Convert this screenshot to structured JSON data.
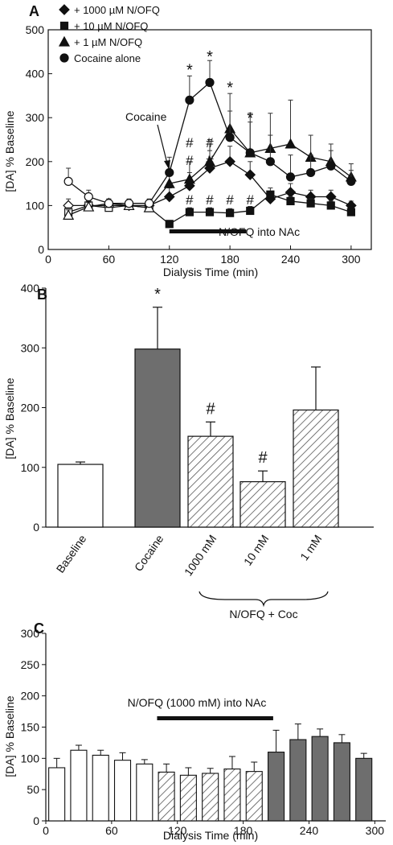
{
  "chart_data": [
    {
      "panel": "A",
      "type": "line",
      "ylabel": "[DA] % Baseline",
      "xlabel": "Dialysis Time (min)",
      "xlim": [
        0,
        320
      ],
      "ylim": [
        0,
        500
      ],
      "xticks": [
        0,
        60,
        120,
        180,
        240,
        300
      ],
      "yticks": [
        0,
        100,
        200,
        300,
        400,
        500
      ],
      "legend_position": "top-left",
      "series": [
        {
          "name": "+ 1000 µM N/OFQ",
          "marker": "diamond",
          "x": [
            20,
            40,
            60,
            80,
            100,
            120,
            140,
            160,
            180,
            200,
            220,
            240,
            260,
            280,
            300
          ],
          "y": [
            100,
            100,
            100,
            100,
            100,
            120,
            145,
            185,
            200,
            170,
            115,
            130,
            120,
            120,
            100
          ],
          "err": [
            15,
            10,
            10,
            10,
            10,
            20,
            30,
            40,
            35,
            30,
            15,
            20,
            15,
            15,
            10
          ]
        },
        {
          "name": "+ 10 µM N/OFQ",
          "marker": "square",
          "x": [
            20,
            40,
            60,
            80,
            100,
            120,
            140,
            160,
            180,
            200,
            220,
            240,
            260,
            280,
            300
          ],
          "y": [
            85,
            100,
            95,
            100,
            95,
            58,
            85,
            85,
            83,
            88,
            125,
            110,
            105,
            100,
            85
          ],
          "err": [
            10,
            10,
            10,
            10,
            10,
            8,
            10,
            10,
            10,
            10,
            15,
            10,
            10,
            10,
            8
          ]
        },
        {
          "name": "+ 1 µM N/OFQ",
          "marker": "triangle",
          "x": [
            20,
            40,
            60,
            80,
            100,
            120,
            140,
            160,
            180,
            200,
            220,
            240,
            260,
            280,
            300
          ],
          "y": [
            78,
            97,
            105,
            100,
            95,
            150,
            160,
            200,
            275,
            220,
            230,
            240,
            210,
            200,
            165
          ],
          "err": [
            12,
            10,
            10,
            10,
            10,
            30,
            40,
            50,
            80,
            90,
            80,
            100,
            50,
            40,
            30
          ]
        },
        {
          "name": "Cocaine alone",
          "marker": "circle",
          "x": [
            20,
            40,
            60,
            80,
            100,
            120,
            140,
            160,
            180,
            200,
            220,
            240,
            260,
            280,
            300
          ],
          "y": [
            155,
            120,
            105,
            105,
            105,
            175,
            340,
            380,
            255,
            220,
            200,
            165,
            175,
            190,
            155
          ],
          "err": [
            30,
            15,
            10,
            10,
            10,
            35,
            55,
            50,
            60,
            70,
            60,
            50,
            40,
            35,
            25
          ]
        }
      ],
      "annotations": {
        "cocaine_arrow": "Cocaine",
        "bar_label": "N/OFQ into NAc",
        "bar_range": [
          120,
          200
        ],
        "stars": [
          {
            "x": 140,
            "y": 415
          },
          {
            "x": 160,
            "y": 445
          },
          {
            "x": 180,
            "y": 375
          },
          {
            "x": 200,
            "y": 305
          }
        ],
        "hash_upper": [
          {
            "x": 140,
            "y": 245
          },
          {
            "x": 140,
            "y": 205
          },
          {
            "x": 160,
            "y": 245
          },
          {
            "x": 160,
            "y": 205
          }
        ],
        "hash_lower": [
          {
            "x": 140,
            "y": 115
          },
          {
            "x": 160,
            "y": 115
          },
          {
            "x": 180,
            "y": 115
          },
          {
            "x": 200,
            "y": 115
          }
        ],
        "star_glyph": "*",
        "hash_glyph": "#"
      }
    },
    {
      "panel": "B",
      "type": "bar",
      "ylabel": "[DA] % Baseline",
      "ylim": [
        0,
        400
      ],
      "yticks": [
        0,
        100,
        200,
        300,
        400
      ],
      "categories": [
        "Baseline",
        "Cocaine",
        "1000 mM",
        "10 mM",
        "1 mM"
      ],
      "values": [
        105,
        298,
        152,
        76,
        196
      ],
      "err": [
        4,
        70,
        24,
        18,
        72
      ],
      "styles": [
        "white",
        "gray",
        "hatched",
        "hatched",
        "hatched"
      ],
      "significance": [
        "",
        "*",
        "#",
        "#",
        ""
      ],
      "group_label": "N/OFQ + Coc"
    },
    {
      "panel": "C",
      "type": "bar",
      "ylabel": "[DA] % Baseline",
      "xlabel": "Dialysis Time (min)",
      "xlim": [
        0,
        310
      ],
      "ylim": [
        0,
        300
      ],
      "xticks": [
        0,
        60,
        120,
        180,
        240,
        300
      ],
      "yticks": [
        0,
        50,
        100,
        150,
        200,
        250,
        300
      ],
      "x": [
        10,
        30,
        50,
        70,
        90,
        110,
        130,
        150,
        170,
        190,
        210,
        230,
        250,
        270,
        290
      ],
      "values": [
        85,
        113,
        105,
        97,
        91,
        78,
        73,
        76,
        83,
        79,
        110,
        130,
        135,
        125,
        100
      ],
      "err": [
        15,
        8,
        8,
        12,
        7,
        13,
        12,
        8,
        20,
        15,
        35,
        25,
        12,
        13,
        8
      ],
      "styles": [
        "white",
        "white",
        "white",
        "white",
        "white",
        "hatched",
        "hatched",
        "hatched",
        "hatched",
        "hatched",
        "gray",
        "gray",
        "gray",
        "gray",
        "gray"
      ],
      "bar_label": "N/OFQ (1000 mM) into NAc",
      "bar_range": [
        100,
        200
      ]
    }
  ],
  "colors": {
    "gray_bar": "#6e6e6e",
    "hatch": "#555555",
    "line": "#111111"
  }
}
